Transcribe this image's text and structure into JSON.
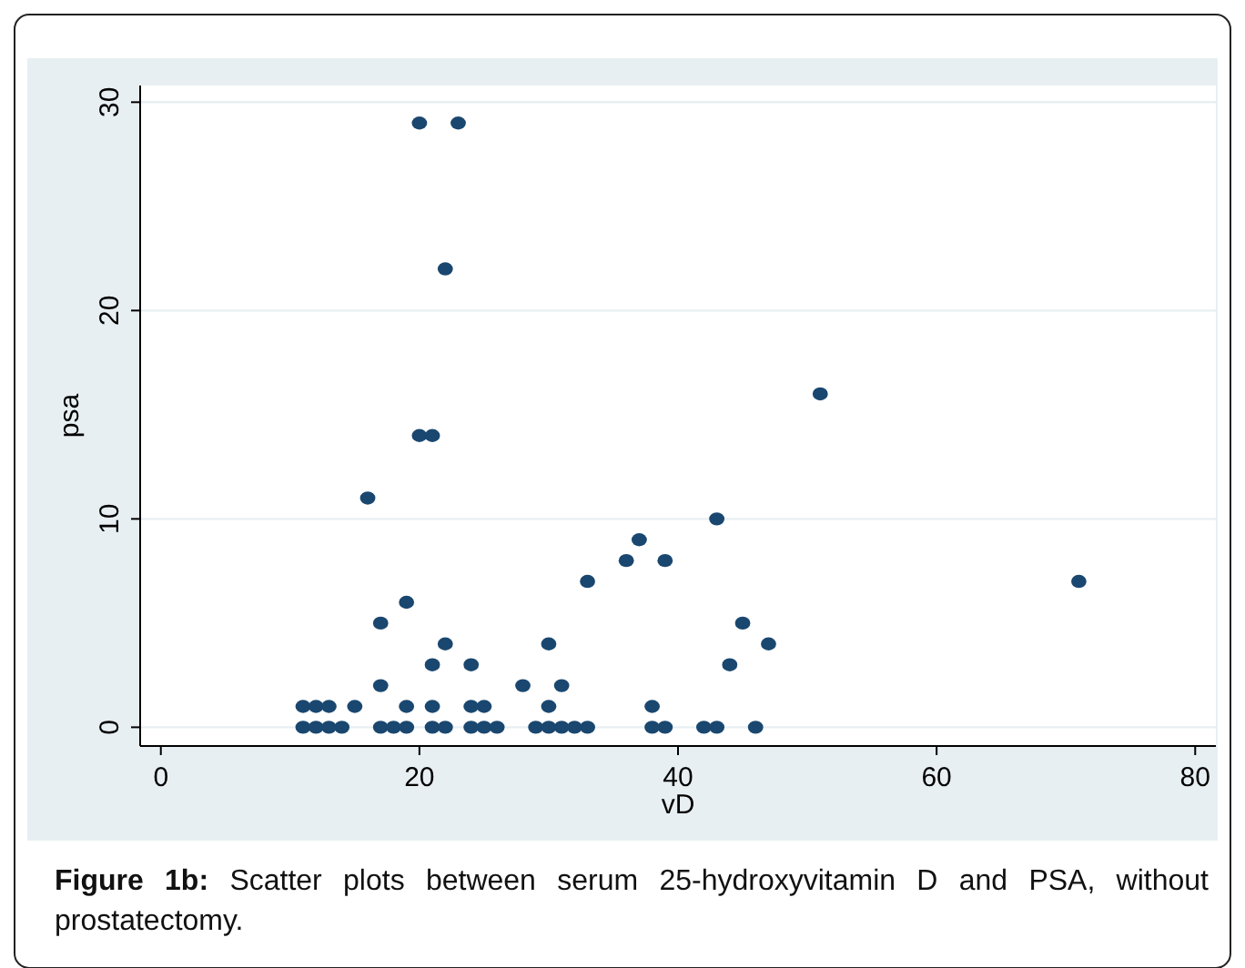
{
  "chart_data": {
    "type": "scatter",
    "xlabel": "vD",
    "ylabel": "psa",
    "x": [
      11,
      12,
      13,
      14,
      17,
      18,
      19,
      21,
      22,
      24,
      25,
      26,
      29,
      30,
      31,
      32,
      33,
      38,
      39,
      42,
      43,
      46,
      11,
      12,
      13,
      15,
      19,
      21,
      24,
      25,
      30,
      38,
      17,
      28,
      31,
      21,
      24,
      44,
      22,
      30,
      47,
      17,
      45,
      19,
      33,
      71,
      36,
      39,
      37,
      43,
      16,
      20,
      21,
      51,
      22,
      20,
      23
    ],
    "series": [
      {
        "color": "#1a476f",
        "values": [
          0,
          0,
          0,
          0,
          0,
          0,
          0,
          0,
          0,
          0,
          0,
          0,
          0,
          0,
          0,
          0,
          0,
          0,
          0,
          0,
          0,
          0,
          1,
          1,
          1,
          1,
          1,
          1,
          1,
          1,
          1,
          1,
          2,
          2,
          2,
          3,
          3,
          3,
          4,
          4,
          4,
          5,
          5,
          6,
          7,
          7,
          8,
          8,
          9,
          10,
          11,
          14,
          14,
          16,
          22,
          29,
          29
        ]
      }
    ],
    "xlim": [
      -1.6,
      81.6
    ],
    "ylim": [
      -0.9,
      30.8
    ],
    "xticks": [
      0,
      20,
      40,
      60,
      80
    ],
    "yticks": [
      0,
      10,
      20,
      30
    ],
    "grid": "y",
    "marker": "circle",
    "annotations": [
      "Figure 1b: Scatter plots between serum 25-hydroxyvitamin D and PSA, without prostatectomy."
    ]
  }
}
